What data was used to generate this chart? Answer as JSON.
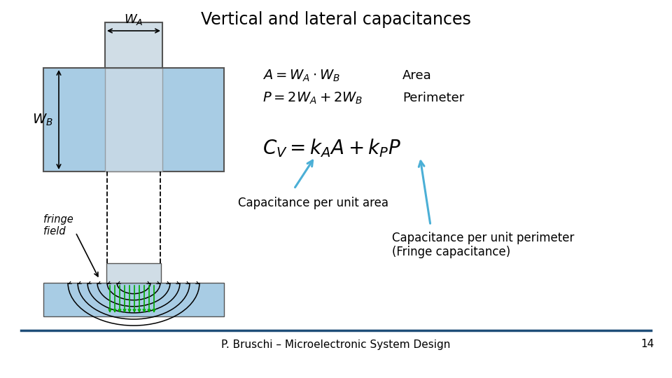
{
  "title": "Vertical and lateral capacitances",
  "title_fontsize": 17,
  "footer_text": "P. Bruschi – Microelectronic System Design",
  "footer_number": "14",
  "bg_color": "#ffffff",
  "label1": "Area",
  "label2": "Perimeter",
  "annotation1": "Capacitance per unit area",
  "annotation2": "Capacitance per unit perimeter\n(Fringe capacitance)",
  "fringe_label": "fringe\nfield",
  "blue_color": "#a8cce4",
  "gray_color": "#d0dde6",
  "arrow_color": "#4bafd6",
  "footer_line_color": "#1f4e79",
  "green_color": "#00aa00"
}
